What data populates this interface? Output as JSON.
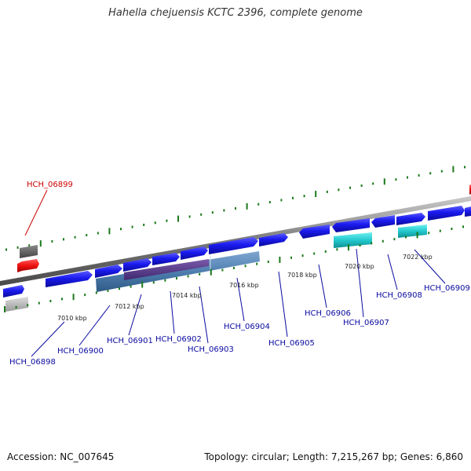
{
  "title": "Hahella chejuensis KCTC 2396, complete genome",
  "footer": {
    "accession": "Accession: NC_007645",
    "summary": "Topology: circular; Length: 7,215,267 bp; Genes: 6,860"
  },
  "colors": {
    "forward_gene": "#1a1aee",
    "reverse_gene_highlight": "#ee1111",
    "label_blue": "#0a0aa0",
    "label_red": "#cc0000",
    "backbone": "#8a8a8a",
    "tick_green": "#1b7a1b",
    "feature_steel": "#4f7fb0",
    "feature_purple": "#5a3a8a",
    "feature_cyan": "#22c8cc",
    "gray_box": "#666666",
    "light_gray_box": "#bbbbbb"
  },
  "ticks": [
    {
      "label": "7010 kbp"
    },
    {
      "label": "7012 kbp"
    },
    {
      "label": "7014 kbp"
    },
    {
      "label": "7016 kbp"
    },
    {
      "label": "7018 kbp"
    },
    {
      "label": "7020 kbp"
    },
    {
      "label": "7022 kbp"
    }
  ],
  "genes": [
    {
      "label": "HCH_06898",
      "color": "blue"
    },
    {
      "label": "HCH_06899",
      "color": "red"
    },
    {
      "label": "HCH_06900",
      "color": "blue"
    },
    {
      "label": "HCH_06901",
      "color": "blue"
    },
    {
      "label": "HCH_06902",
      "color": "blue"
    },
    {
      "label": "HCH_06903",
      "color": "blue"
    },
    {
      "label": "HCH_06904",
      "color": "blue"
    },
    {
      "label": "HCH_06905",
      "color": "blue"
    },
    {
      "label": "HCH_06906",
      "color": "blue"
    },
    {
      "label": "HCH_06907",
      "color": "blue"
    },
    {
      "label": "HCH_06908",
      "color": "blue"
    },
    {
      "label": "HCH_06909",
      "color": "blue"
    }
  ]
}
